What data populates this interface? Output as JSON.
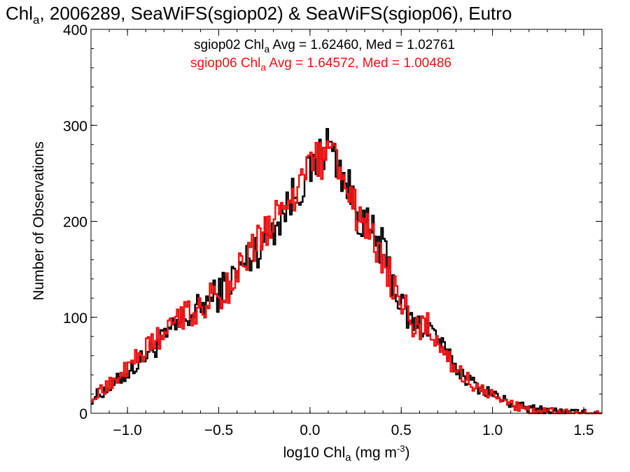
{
  "chart_data": {
    "type": "line",
    "title": {
      "prefix": "Chl",
      "sub": "a",
      "suffix": ", 2006289, SeaWiFS(sgiop02) & SeaWiFS(sgiop06), Eutro"
    },
    "xlabel": {
      "prefix": "log10 Chl",
      "sub": "a",
      "mid": " (mg m",
      "sup": "-3",
      "suffix": ")"
    },
    "ylabel": "Number of Observations",
    "xlim": [
      -1.2,
      1.6
    ],
    "ylim": [
      0,
      400
    ],
    "xticks": [
      {
        "value": -1.0,
        "label": "−1.0"
      },
      {
        "value": -0.5,
        "label": "−0.5"
      },
      {
        "value": 0.0,
        "label": "0.0"
      },
      {
        "value": 0.5,
        "label": "0.5"
      },
      {
        "value": 1.0,
        "label": "1.0"
      },
      {
        "value": 1.5,
        "label": "1.5"
      }
    ],
    "yticks": [
      {
        "value": 0,
        "label": "0"
      },
      {
        "value": 100,
        "label": "100"
      },
      {
        "value": 200,
        "label": "200"
      },
      {
        "value": 300,
        "label": "300"
      },
      {
        "value": 400,
        "label": "400"
      }
    ],
    "grid": false,
    "series": [
      {
        "name": "sgiop02",
        "color": "#000000",
        "stats": {
          "prefix": "sgiop02 Chl",
          "sub": "a",
          "suffix": " Avg = 1.62460, Med = 1.02761"
        },
        "x": [
          -1.2,
          -1.1,
          -1.0,
          -0.9,
          -0.8,
          -0.7,
          -0.6,
          -0.5,
          -0.4,
          -0.3,
          -0.2,
          -0.1,
          0.0,
          0.05,
          0.1,
          0.15,
          0.2,
          0.25,
          0.3,
          0.35,
          0.4,
          0.45,
          0.5,
          0.55,
          0.6,
          0.65,
          0.7,
          0.75,
          0.8,
          0.9,
          1.0,
          1.1,
          1.2,
          1.3,
          1.4,
          1.5,
          1.6
        ],
        "y": [
          15,
          27,
          42,
          60,
          78,
          95,
          110,
          125,
          145,
          170,
          195,
          225,
          250,
          265,
          283,
          262,
          240,
          215,
          195,
          185,
          170,
          140,
          112,
          95,
          90,
          92,
          78,
          60,
          47,
          30,
          20,
          10,
          5,
          3,
          1,
          0,
          0
        ]
      },
      {
        "name": "sgiop06",
        "color": "#ee1111",
        "stats": {
          "prefix": "sgiop06 Chl",
          "sub": "a",
          "suffix": " Avg = 1.64572, Med = 1.00486"
        },
        "x": [
          -1.2,
          -1.1,
          -1.0,
          -0.9,
          -0.8,
          -0.7,
          -0.6,
          -0.5,
          -0.4,
          -0.3,
          -0.2,
          -0.1,
          0.0,
          0.05,
          0.1,
          0.15,
          0.2,
          0.25,
          0.3,
          0.35,
          0.4,
          0.45,
          0.5,
          0.55,
          0.6,
          0.65,
          0.7,
          0.75,
          0.8,
          0.9,
          1.0,
          1.1,
          1.2,
          1.3,
          1.4,
          1.5,
          1.6
        ],
        "y": [
          17,
          30,
          47,
          66,
          82,
          100,
          112,
          122,
          142,
          172,
          198,
          222,
          262,
          260,
          278,
          258,
          238,
          213,
          188,
          182,
          165,
          140,
          115,
          98,
          88,
          90,
          75,
          58,
          45,
          30,
          18,
          9,
          4,
          2,
          1,
          0,
          0
        ]
      }
    ]
  }
}
